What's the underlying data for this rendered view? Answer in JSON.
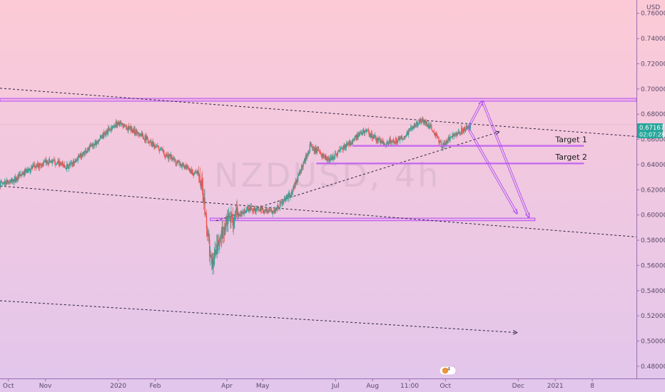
{
  "chart_data": {
    "type": "candlestick",
    "symbol_watermark": "NZDUSD, 4h",
    "currency_label": "USD",
    "y_ticks": [
      "0.76000",
      "0.74000",
      "0.72000",
      "0.70000",
      "0.68000",
      "0.66000",
      "0.64000",
      "0.62000",
      "0.60000",
      "0.58000",
      "0.56000",
      "0.54000",
      "0.52000",
      "0.50000",
      "0.48000"
    ],
    "y_tick_values": [
      0.76,
      0.74,
      0.72,
      0.7,
      0.68,
      0.66,
      0.64,
      0.62,
      0.6,
      0.58,
      0.56,
      0.54,
      0.52,
      0.5,
      0.48
    ],
    "ylim": [
      0.4703,
      0.7706
    ],
    "x_ticks": [
      "Oct",
      "Nov",
      "2020",
      "Feb",
      "Apr",
      "May",
      "Jul",
      "Aug",
      "11:00",
      "Oct",
      "Dec",
      "2021",
      "8"
    ],
    "x_tick_dates": [
      "2019-10-01",
      "2019-11-01",
      "2020-01-01",
      "2020-02-01",
      "2020-04-01",
      "2020-05-01",
      "2020-07-01",
      "2020-08-01",
      "2020-09-01",
      "2020-10-01",
      "2020-12-01",
      "2021-01-01",
      "2021-02-01"
    ],
    "xlim": [
      "2019-09-24",
      "2021-03-10"
    ],
    "last_price": "0.67167",
    "last_price_value": 0.67167,
    "countdown": "02:07:28",
    "price_path": [
      {
        "date": "2019-09-24",
        "price": 0.625
      },
      {
        "date": "2019-10-05",
        "price": 0.627
      },
      {
        "date": "2019-10-20",
        "price": 0.637
      },
      {
        "date": "2019-11-05",
        "price": 0.643
      },
      {
        "date": "2019-11-20",
        "price": 0.638
      },
      {
        "date": "2019-12-10",
        "price": 0.655
      },
      {
        "date": "2019-12-31",
        "price": 0.673
      },
      {
        "date": "2020-01-20",
        "price": 0.664
      },
      {
        "date": "2020-02-10",
        "price": 0.648
      },
      {
        "date": "2020-03-01",
        "price": 0.635
      },
      {
        "date": "2020-03-10",
        "price": 0.632
      },
      {
        "date": "2020-03-19",
        "price": 0.56
      },
      {
        "date": "2020-04-01",
        "price": 0.595
      },
      {
        "date": "2020-04-20",
        "price": 0.605
      },
      {
        "date": "2020-05-10",
        "price": 0.603
      },
      {
        "date": "2020-05-25",
        "price": 0.617
      },
      {
        "date": "2020-06-10",
        "price": 0.655
      },
      {
        "date": "2020-06-25",
        "price": 0.643
      },
      {
        "date": "2020-07-10",
        "price": 0.655
      },
      {
        "date": "2020-07-25",
        "price": 0.667
      },
      {
        "date": "2020-08-10",
        "price": 0.657
      },
      {
        "date": "2020-08-25",
        "price": 0.66
      },
      {
        "date": "2020-09-10",
        "price": 0.675
      },
      {
        "date": "2020-09-18",
        "price": 0.671
      },
      {
        "date": "2020-09-28",
        "price": 0.655
      },
      {
        "date": "2020-10-10",
        "price": 0.665
      },
      {
        "date": "2020-10-22",
        "price": 0.671
      }
    ],
    "horizontal_bands": [
      {
        "y0": 0.6903,
        "y1": 0.6925,
        "date0": "2019-09-24",
        "date1": "2021-03-10"
      },
      {
        "y0": 0.5955,
        "y1": 0.5975,
        "date0": "2020-03-18",
        "date1": "2020-12-15"
      }
    ],
    "target_lines": [
      {
        "label": "Target 1",
        "price": 0.655,
        "date0": "2020-07-15",
        "date1": "2021-01-25"
      },
      {
        "label": "Target 2",
        "price": 0.641,
        "date0": "2020-06-15",
        "date1": "2021-01-25"
      }
    ],
    "dashed_lines": [
      {
        "date0": "2019-09-24",
        "p0": 0.7006,
        "date1": "2021-03-10",
        "p1": 0.6623
      },
      {
        "date0": "2019-09-24",
        "p0": 0.623,
        "date1": "2021-03-10",
        "p1": 0.5826
      },
      {
        "date0": "2019-09-24",
        "p0": 0.532,
        "date1": "2020-11-30",
        "p1": 0.5067
      },
      {
        "date0": "2020-03-23",
        "p0": 0.5955,
        "date1": "2020-11-15",
        "p1": 0.666
      }
    ],
    "projection_arrows": [
      {
        "from_date": "2020-10-20",
        "from_price": 0.669,
        "to_date": "2020-11-01",
        "to_price": 0.6905
      },
      {
        "from_date": "2020-11-01",
        "from_price": 0.6905,
        "to_date": "2020-12-10",
        "to_price": 0.598
      },
      {
        "from_date": "2020-10-20",
        "from_price": 0.669,
        "to_date": "2020-11-30",
        "to_price": 0.601
      }
    ],
    "notification_count": "4"
  }
}
